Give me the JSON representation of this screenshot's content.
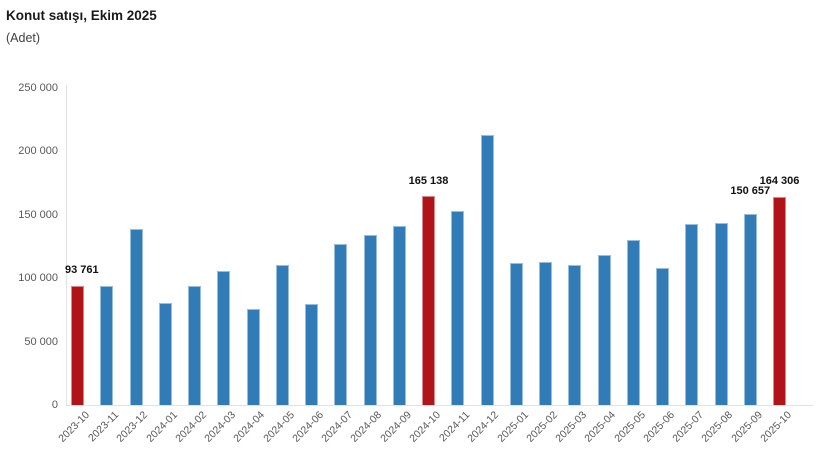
{
  "header": {
    "title": "Konut satışı, Ekim 2025",
    "subtitle": "(Adet)"
  },
  "chart_data": {
    "type": "bar",
    "title": "Konut satışı, Ekim 2025",
    "unit_label": "(Adet)",
    "xlabel": "",
    "ylabel": "",
    "ylim": [
      0,
      250000
    ],
    "ytick_interval": 50000,
    "ytick_labels": [
      "0",
      "50 000",
      "100 000",
      "150 000",
      "200 000",
      "250 000"
    ],
    "grid": "none",
    "legend": "none",
    "categories": [
      "2023-10",
      "2023-11",
      "2023-12",
      "2024-01",
      "2024-02",
      "2024-03",
      "2024-04",
      "2024-05",
      "2024-06",
      "2024-07",
      "2024-08",
      "2024-09",
      "2024-10",
      "2024-11",
      "2024-12",
      "2025-01",
      "2025-02",
      "2025-03",
      "2025-04",
      "2025-05",
      "2025-06",
      "2025-07",
      "2025-08",
      "2025-09",
      "2025-10"
    ],
    "values": [
      93761,
      93577,
      138577,
      80308,
      93902,
      105476,
      75569,
      110588,
      79313,
      127088,
      134155,
      140919,
      165138,
      153014,
      212637,
      112173,
      112818,
      110795,
      118359,
      130025,
      107723,
      142858,
      143319,
      150657,
      164306
    ],
    "highlighted_indices": [
      0,
      12,
      24
    ],
    "data_labels": [
      {
        "index": 0,
        "text": "93 761"
      },
      {
        "index": 12,
        "text": "165 138"
      },
      {
        "index": 23,
        "text": "150 657"
      },
      {
        "index": 24,
        "text": "164 306"
      }
    ],
    "colors": {
      "bar": "#317CB7",
      "highlight": "#B01318",
      "axis_line": "#e2e2e2",
      "tick_text": "#595959",
      "data_label_text": "#111111"
    }
  }
}
